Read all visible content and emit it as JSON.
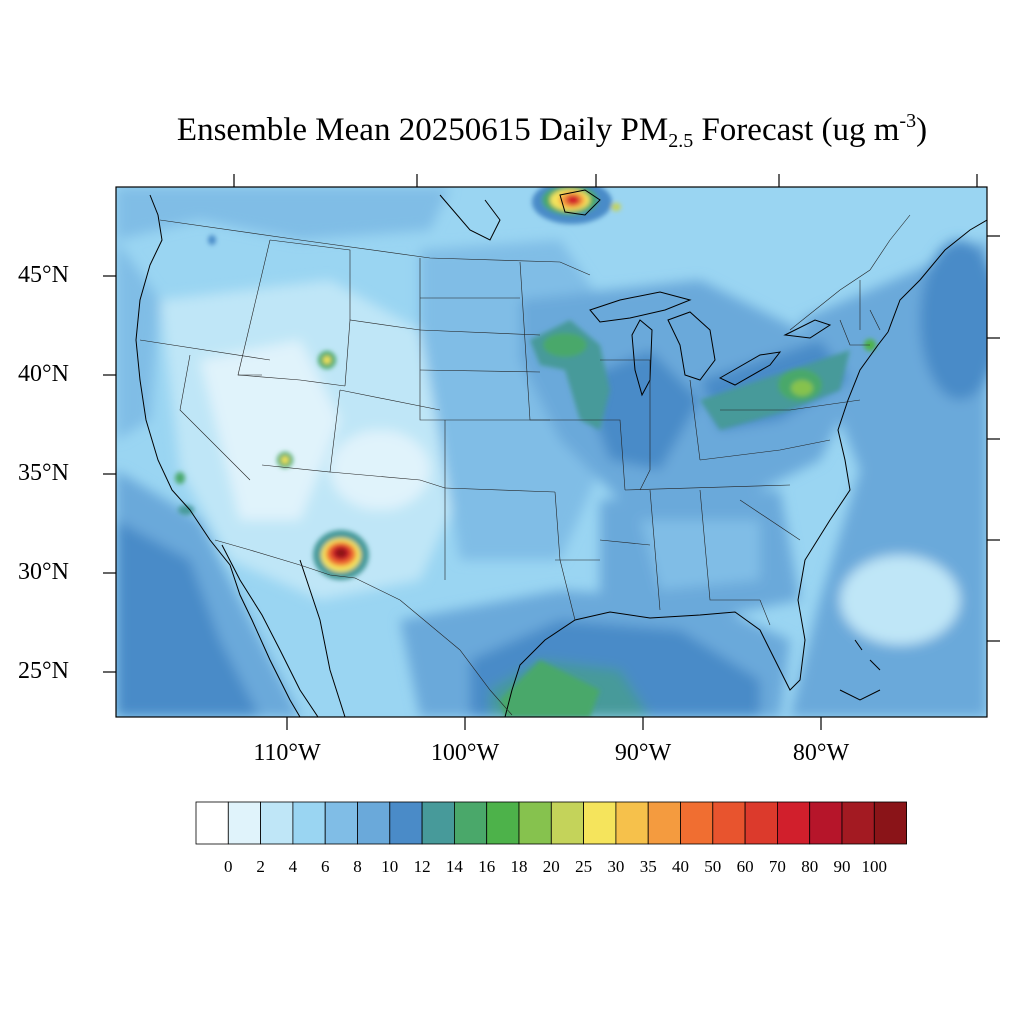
{
  "title": {
    "main": "Ensemble Mean 20250615 Daily PM",
    "sub": "2.5",
    "rest": " Forecast (ug m",
    "sup": "-3",
    "end": ")"
  },
  "lat_labels": [
    "45°N",
    "40°N",
    "35°N",
    "30°N",
    "25°N"
  ],
  "lon_labels": [
    "110°W",
    "100°W",
    "90°W",
    "80°W"
  ],
  "colorbar": {
    "labels": [
      "0",
      "2",
      "4",
      "6",
      "8",
      "10",
      "12",
      "14",
      "16",
      "18",
      "20",
      "25",
      "30",
      "35",
      "40",
      "50",
      "60",
      "70",
      "80",
      "90",
      "100"
    ],
    "colors": [
      "#ffffff",
      "#e0f3fb",
      "#bfe6f7",
      "#9ad5f2",
      "#80bde6",
      "#6aa9da",
      "#4a8bc8",
      "#479a9a",
      "#4aa86a",
      "#4db24a",
      "#86c24e",
      "#c4d35a",
      "#f5e45c",
      "#f6c14b",
      "#f49b3f",
      "#f06e31",
      "#e8542e",
      "#dc3a2c",
      "#d11f2c",
      "#b6152a",
      "#a31a22",
      "#8a1418"
    ]
  },
  "hotspots": [
    {
      "name": "southern New Mexico",
      "level": "90+"
    },
    {
      "name": "Ontario near Lake of the Woods",
      "level": "80+"
    },
    {
      "name": "southwest Wyoming",
      "level": "25-30"
    },
    {
      "name": "northern Arizona",
      "level": "25-30"
    },
    {
      "name": "Pennsylvania/Maryland",
      "level": "20-25"
    },
    {
      "name": "Minnesota/Iowa",
      "level": "16-20"
    },
    {
      "name": "Texas Gulf coast",
      "level": "14-16"
    }
  ]
}
